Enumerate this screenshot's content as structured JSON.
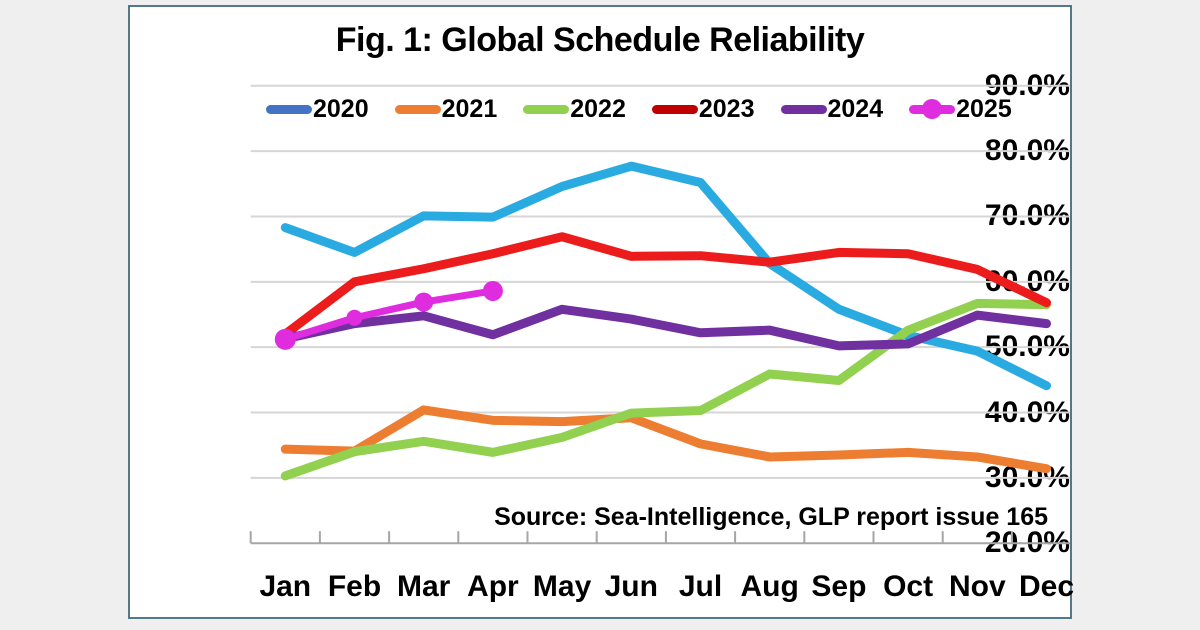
{
  "figure": {
    "title": "Fig. 1: Global Schedule Reliability",
    "source_note": "Source: Sea-Intelligence, GLP report issue 165"
  },
  "colors": {
    "panel_border": "#54788a",
    "panel_background": "#ffffff",
    "page_background": "#efefef",
    "gridline": "#d6d6d6",
    "axis_line": "#a6a6a6",
    "text": "#000000"
  },
  "chart_data": {
    "type": "line",
    "title": "Fig. 1: Global Schedule Reliability",
    "source": "Source: Sea-Intelligence, GLP report issue 165",
    "categories": [
      "Jan",
      "Feb",
      "Mar",
      "Apr",
      "May",
      "Jun",
      "Jul",
      "Aug",
      "Sep",
      "Oct",
      "Nov",
      "Dec"
    ],
    "xlabel": "",
    "ylabel": "",
    "ylim": [
      20,
      90
    ],
    "y_axis": {
      "min": 20,
      "max": 90,
      "step": 10,
      "format": "percent",
      "tick_labels": [
        "90.0%",
        "80.0%",
        "70.0%",
        "60.0%",
        "50.0%",
        "40.0%",
        "30.0%",
        "20.0%"
      ],
      "tick_values": [
        90,
        80,
        70,
        60,
        50,
        40,
        30,
        20
      ]
    },
    "grid": true,
    "legend_position": "top",
    "series": [
      {
        "name": "2020",
        "line_color": "#29ABE2",
        "legend_color": "#4472C4",
        "marker": "none",
        "values": [
          68.3,
          64.5,
          70.1,
          69.9,
          74.6,
          77.7,
          75.2,
          62.8,
          55.8,
          51.8,
          49.4,
          44.1
        ]
      },
      {
        "name": "2021",
        "line_color": "#ED7D31",
        "legend_color": "#ED7D31",
        "marker": "none",
        "values": [
          34.4,
          34.1,
          40.4,
          38.8,
          38.6,
          39.2,
          35.2,
          33.2,
          33.5,
          33.9,
          33.2,
          31.4
        ]
      },
      {
        "name": "2022",
        "line_color": "#92D050",
        "legend_color": "#92D050",
        "marker": "none",
        "values": [
          30.3,
          34.0,
          35.6,
          33.9,
          36.2,
          39.9,
          40.3,
          45.9,
          44.9,
          52.6,
          56.7,
          56.5
        ]
      },
      {
        "name": "2023",
        "line_color": "#ED1C1C",
        "legend_color": "#C00000",
        "marker": "none",
        "values": [
          52.0,
          60.0,
          62.0,
          64.3,
          66.9,
          63.9,
          64.0,
          63.0,
          64.5,
          64.3,
          61.9,
          56.8
        ]
      },
      {
        "name": "2024",
        "line_color": "#7030A0",
        "legend_color": "#7030A0",
        "marker": "none",
        "values": [
          51.3,
          53.6,
          54.8,
          51.9,
          55.8,
          54.3,
          52.2,
          52.6,
          50.2,
          50.5,
          54.9,
          53.6
        ]
      },
      {
        "name": "2025",
        "line_color": "#DF2CDF",
        "legend_color": "#DF2CDF",
        "marker": "circle",
        "marker_radii": [
          10.5,
          8,
          9.5,
          10
        ],
        "values": [
          51.2,
          54.5,
          56.9,
          58.6
        ]
      }
    ]
  }
}
